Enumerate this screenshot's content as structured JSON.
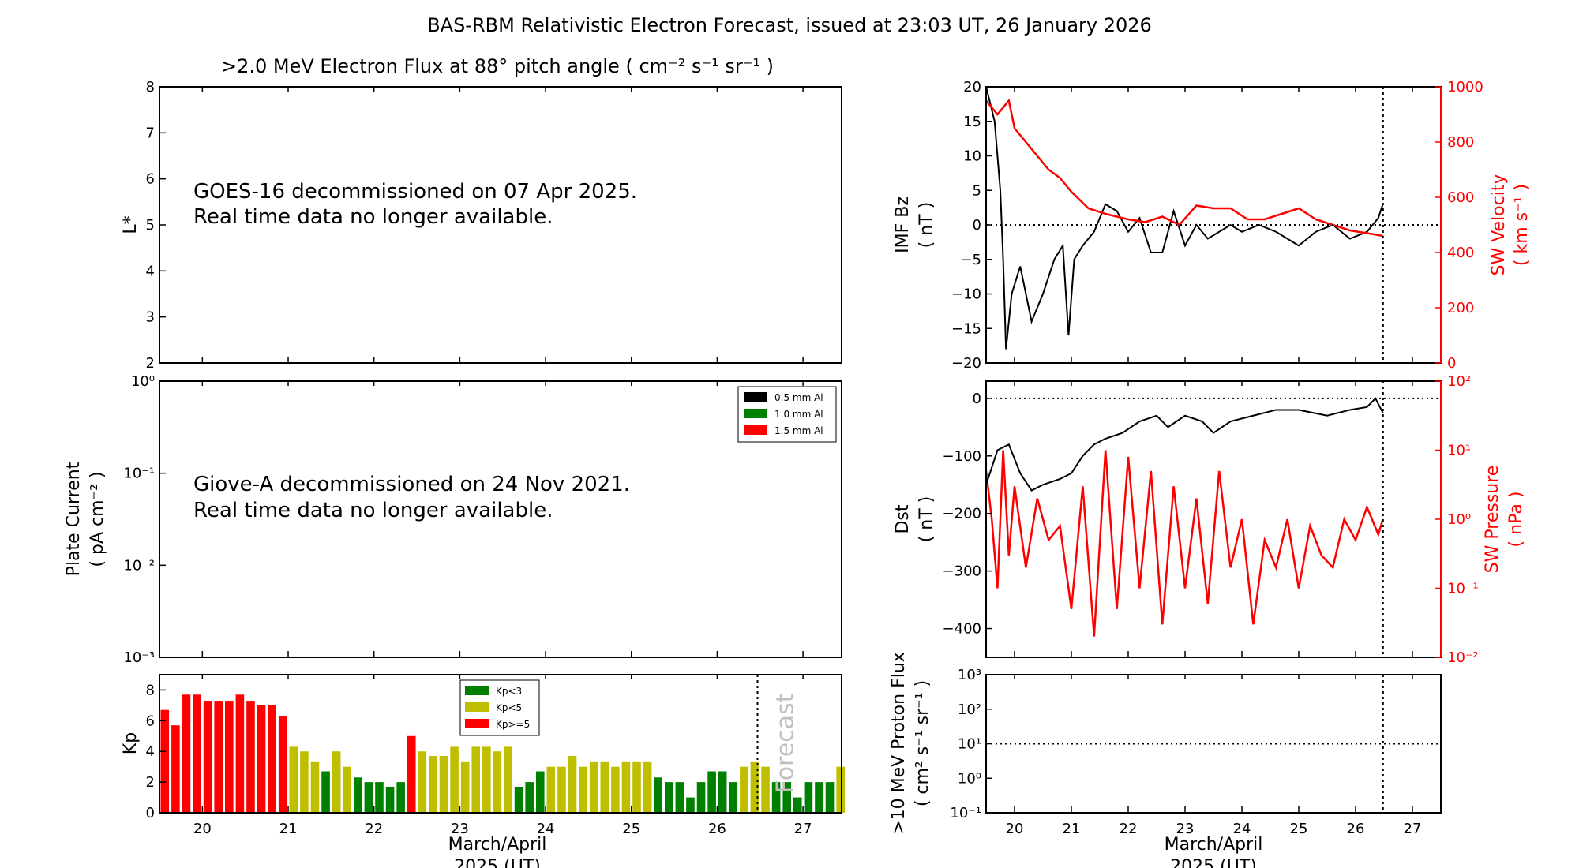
{
  "chart_data": [
    {
      "id": "flux",
      "type": "heatmap",
      "title": ">2.0 MeV Electron Flux at 88° pitch angle ( cm⁻² s⁻¹ sr⁻¹ )",
      "ylabel": "L*",
      "ylim": [
        2,
        8
      ],
      "yticks": [
        "2",
        "3",
        "4",
        "5",
        "6",
        "7",
        "8"
      ],
      "notice_line1": "GOES-16 decommissioned on 07 Apr 2025.",
      "notice_line2": "Real time data no longer available."
    },
    {
      "id": "plate",
      "type": "line",
      "ylabel_line1": "Plate Current",
      "ylabel_line2": "( pA cm⁻² )",
      "yscale": "log",
      "ylim": [
        0.001,
        1
      ],
      "yticks": [
        "10⁻³",
        "10⁻²",
        "10⁻¹",
        "10⁰"
      ],
      "legend": [
        {
          "label": "0.5 mm Al",
          "color": "#000000"
        },
        {
          "label": "1.0 mm Al",
          "color": "#008000"
        },
        {
          "label": "1.5 mm Al",
          "color": "#ff0000"
        }
      ],
      "notice_line1": "Giove-A decommissioned on 24 Nov 2021.",
      "notice_line2": "Real time data no longer available."
    },
    {
      "id": "kp",
      "type": "bar",
      "ylabel": "Kp",
      "ylim": [
        0,
        9
      ],
      "yticks": [
        "0",
        "2",
        "4",
        "6",
        "8"
      ],
      "xlim": [
        19.5,
        27.45
      ],
      "xticks": [
        "20",
        "21",
        "22",
        "23",
        "24",
        "25",
        "26",
        "27"
      ],
      "xlabel_line1": "March/April",
      "xlabel_line2": "2025 (UT)",
      "bar_start_day": 19.5,
      "bar_width_days": 0.125,
      "values": [
        6.7,
        5.7,
        7.7,
        7.7,
        7.3,
        7.3,
        7.3,
        7.7,
        7.3,
        7.0,
        7.0,
        6.3,
        4.3,
        4.0,
        3.3,
        2.7,
        4.0,
        3.0,
        2.3,
        2.0,
        2.0,
        1.7,
        2.0,
        5.0,
        4.0,
        3.7,
        3.7,
        4.3,
        3.3,
        4.3,
        4.3,
        4.0,
        4.3,
        1.7,
        2.0,
        2.7,
        3.0,
        3.0,
        3.7,
        3.0,
        3.3,
        3.3,
        3.0,
        3.3,
        3.3,
        3.3,
        2.3,
        2.0,
        2.0,
        1.0,
        2.0,
        2.7,
        2.7,
        2.0,
        3.0,
        3.3,
        3.0,
        2.0,
        2.0,
        1.0,
        2.0,
        2.0,
        2.0,
        3.0
      ],
      "forecast_day": 26.47,
      "forecast_label": "Forecast",
      "legend": [
        {
          "label": "Kp<3",
          "color": "#008000"
        },
        {
          "label": "Kp<5",
          "color": "#bfbf00"
        },
        {
          "label": "Kp>=5",
          "color": "#ff0000"
        }
      ]
    },
    {
      "id": "imf",
      "type": "line",
      "ylabel_line1": "IMF Bz",
      "ylabel_line2": "( nT )",
      "ylim": [
        -20,
        20
      ],
      "yticks": [
        "−20",
        "−15",
        "−10",
        "−5",
        "0",
        "5",
        "10",
        "15",
        "20"
      ],
      "y2label_line1": "SW Velocity",
      "y2label_line2": "( km s⁻¹ )",
      "y2lim": [
        0,
        1000
      ],
      "y2ticks": [
        "0",
        "200",
        "400",
        "600",
        "800",
        "1000"
      ],
      "xlim": [
        19.5,
        27.5
      ],
      "now_day": 26.48,
      "series": [
        {
          "name": "IMF Bz",
          "color": "#000000",
          "points": [
            [
              19.5,
              20
            ],
            [
              19.65,
              15
            ],
            [
              19.75,
              5
            ],
            [
              19.8,
              -5
            ],
            [
              19.85,
              -18
            ],
            [
              19.95,
              -10
            ],
            [
              20.1,
              -6
            ],
            [
              20.3,
              -14
            ],
            [
              20.5,
              -10
            ],
            [
              20.7,
              -5
            ],
            [
              20.85,
              -3
            ],
            [
              20.95,
              -16
            ],
            [
              21.05,
              -5
            ],
            [
              21.2,
              -3
            ],
            [
              21.4,
              -1
            ],
            [
              21.6,
              3
            ],
            [
              21.8,
              2
            ],
            [
              22.0,
              -1
            ],
            [
              22.2,
              1
            ],
            [
              22.4,
              -4
            ],
            [
              22.6,
              -4
            ],
            [
              22.8,
              2
            ],
            [
              23.0,
              -3
            ],
            [
              23.2,
              0
            ],
            [
              23.4,
              -2
            ],
            [
              23.6,
              -1
            ],
            [
              23.8,
              0
            ],
            [
              24.0,
              -1
            ],
            [
              24.3,
              0
            ],
            [
              24.6,
              -1
            ],
            [
              25.0,
              -3
            ],
            [
              25.3,
              -1
            ],
            [
              25.6,
              0
            ],
            [
              25.9,
              -2
            ],
            [
              26.2,
              -1
            ],
            [
              26.4,
              1
            ],
            [
              26.48,
              3
            ]
          ]
        },
        {
          "name": "SW Velocity",
          "color": "#ff0000",
          "points": [
            [
              19.5,
              950
            ],
            [
              19.7,
              900
            ],
            [
              19.9,
              950
            ],
            [
              20.0,
              850
            ],
            [
              20.2,
              800
            ],
            [
              20.4,
              750
            ],
            [
              20.6,
              700
            ],
            [
              20.8,
              670
            ],
            [
              21.0,
              620
            ],
            [
              21.3,
              560
            ],
            [
              21.6,
              540
            ],
            [
              22.0,
              520
            ],
            [
              22.3,
              510
            ],
            [
              22.6,
              530
            ],
            [
              22.9,
              500
            ],
            [
              23.2,
              570
            ],
            [
              23.5,
              560
            ],
            [
              23.8,
              560
            ],
            [
              24.1,
              520
            ],
            [
              24.4,
              520
            ],
            [
              24.7,
              540
            ],
            [
              25.0,
              560
            ],
            [
              25.3,
              520
            ],
            [
              25.6,
              500
            ],
            [
              25.9,
              480
            ],
            [
              26.2,
              470
            ],
            [
              26.48,
              460
            ]
          ]
        }
      ]
    },
    {
      "id": "dst",
      "type": "line",
      "ylabel_line1": "Dst",
      "ylabel_line2": "( nT )",
      "ylim": [
        -450,
        30
      ],
      "yticks": [
        "−400",
        "−300",
        "−200",
        "−100",
        "0"
      ],
      "y2label_line1": "SW Pressure",
      "y2label_line2": "( nPa )",
      "y2scale": "log",
      "y2lim": [
        0.01,
        100
      ],
      "y2ticks": [
        "10⁻²",
        "10⁻¹",
        "10⁰",
        "10¹",
        "10²"
      ],
      "xlim": [
        19.5,
        27.5
      ],
      "now_day": 26.48,
      "series": [
        {
          "name": "Dst",
          "color": "#000000",
          "points": [
            [
              19.5,
              -150
            ],
            [
              19.6,
              -120
            ],
            [
              19.7,
              -90
            ],
            [
              19.9,
              -80
            ],
            [
              20.1,
              -130
            ],
            [
              20.3,
              -160
            ],
            [
              20.5,
              -150
            ],
            [
              20.8,
              -140
            ],
            [
              21.0,
              -130
            ],
            [
              21.2,
              -100
            ],
            [
              21.4,
              -80
            ],
            [
              21.6,
              -70
            ],
            [
              21.9,
              -60
            ],
            [
              22.2,
              -40
            ],
            [
              22.5,
              -30
            ],
            [
              22.7,
              -50
            ],
            [
              23.0,
              -30
            ],
            [
              23.3,
              -40
            ],
            [
              23.5,
              -60
            ],
            [
              23.8,
              -40
            ],
            [
              24.2,
              -30
            ],
            [
              24.6,
              -20
            ],
            [
              25.0,
              -20
            ],
            [
              25.5,
              -30
            ],
            [
              25.9,
              -20
            ],
            [
              26.2,
              -15
            ],
            [
              26.35,
              0
            ],
            [
              26.48,
              -25
            ]
          ]
        },
        {
          "name": "SW Pressure",
          "color": "#ff0000",
          "points": [
            [
              19.5,
              5
            ],
            [
              19.6,
              1
            ],
            [
              19.7,
              0.1
            ],
            [
              19.8,
              10
            ],
            [
              19.9,
              0.3
            ],
            [
              20.0,
              3
            ],
            [
              20.2,
              0.2
            ],
            [
              20.4,
              2
            ],
            [
              20.6,
              0.5
            ],
            [
              20.8,
              0.8
            ],
            [
              21.0,
              0.05
            ],
            [
              21.2,
              3
            ],
            [
              21.4,
              0.02
            ],
            [
              21.6,
              10
            ],
            [
              21.8,
              0.05
            ],
            [
              22.0,
              8
            ],
            [
              22.2,
              0.1
            ],
            [
              22.4,
              5
            ],
            [
              22.6,
              0.03
            ],
            [
              22.8,
              3
            ],
            [
              23.0,
              0.1
            ],
            [
              23.2,
              2
            ],
            [
              23.4,
              0.06
            ],
            [
              23.6,
              5
            ],
            [
              23.8,
              0.2
            ],
            [
              24.0,
              1
            ],
            [
              24.2,
              0.03
            ],
            [
              24.4,
              0.5
            ],
            [
              24.6,
              0.2
            ],
            [
              24.8,
              1
            ],
            [
              25.0,
              0.1
            ],
            [
              25.2,
              0.8
            ],
            [
              25.4,
              0.3
            ],
            [
              25.6,
              0.2
            ],
            [
              25.8,
              1
            ],
            [
              26.0,
              0.5
            ],
            [
              26.2,
              1.5
            ],
            [
              26.4,
              0.6
            ],
            [
              26.48,
              1
            ]
          ]
        }
      ]
    },
    {
      "id": "proton",
      "type": "line",
      "ylabel_line1": ">10 MeV Proton Flux",
      "ylabel_line2": "( cm² s⁻¹ sr⁻¹ )",
      "yscale": "log",
      "ylim": [
        0.1,
        1000
      ],
      "yticks": [
        "10⁻¹",
        "10⁰",
        "10¹",
        "10²",
        "10³"
      ],
      "threshold": 10,
      "xlim": [
        19.5,
        27.5
      ],
      "xticks": [
        "20",
        "21",
        "22",
        "23",
        "24",
        "25",
        "26",
        "27"
      ],
      "xlabel_line1": "March/April",
      "xlabel_line2": "2025 (UT)",
      "now_day": 26.48
    }
  ],
  "page": {
    "title": "BAS-RBM Relativistic Electron Forecast, issued at 23:03 UT, 26 January 2026"
  }
}
